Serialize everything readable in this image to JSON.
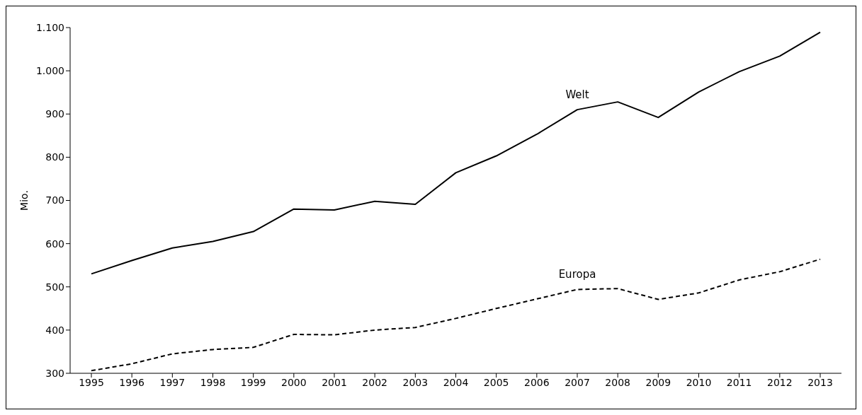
{
  "chart_data": {
    "type": "line",
    "ylabel": "Mio.",
    "categories": [
      "1995",
      "1996",
      "1997",
      "1998",
      "1999",
      "2000",
      "2001",
      "2002",
      "2003",
      "2004",
      "2005",
      "2006",
      "2007",
      "2008",
      "2009",
      "2010",
      "2011",
      "2012",
      "2013"
    ],
    "series": [
      {
        "name": "Welt",
        "color": "#000000",
        "line_style": "solid",
        "values": [
          530,
          561,
          590,
          605,
          628,
          680,
          678,
          698,
          691,
          764,
          803,
          853,
          910,
          928,
          892,
          951,
          998,
          1034,
          1089
        ]
      },
      {
        "name": "Europa",
        "color": "#000000",
        "line_style": "dashed",
        "values": [
          306,
          322,
          345,
          355,
          360,
          390,
          389,
          400,
          406,
          427,
          450,
          472,
          494,
          496,
          471,
          486,
          516,
          535,
          564
        ]
      }
    ],
    "ylim": [
      300,
      1100
    ],
    "yticks": [
      300,
      400,
      500,
      600,
      700,
      800,
      900,
      {
        "value": 1000,
        "label": "1.000"
      },
      {
        "value": 1100,
        "label": "1.100"
      }
    ],
    "marker": "none"
  }
}
